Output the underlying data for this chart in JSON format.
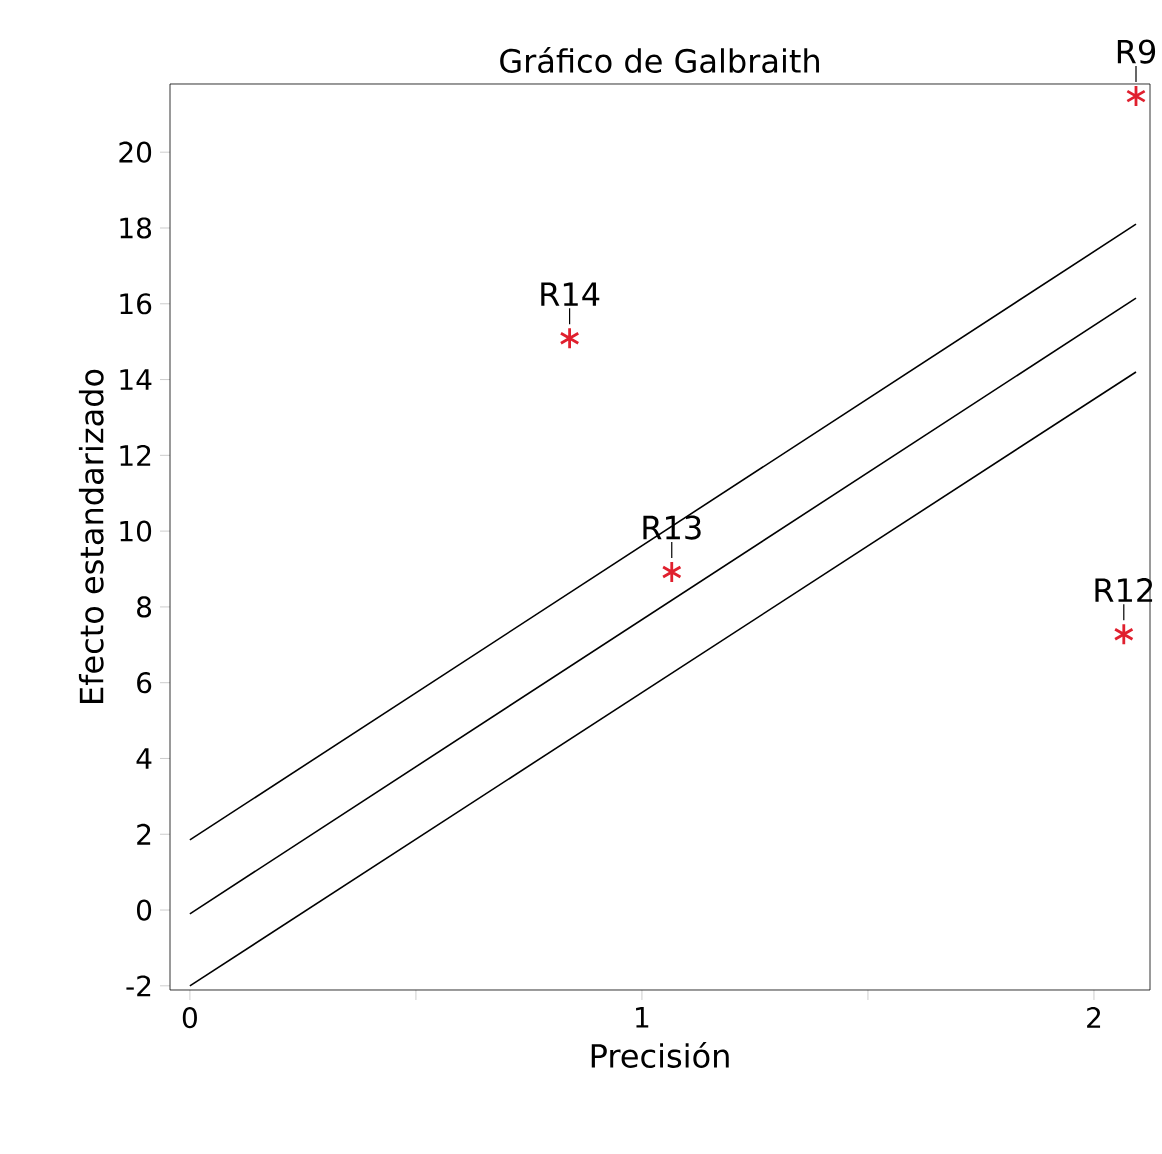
{
  "chart_data": {
    "type": "scatter",
    "title": "Gráfico de Galbraith",
    "xlabel": "Precisión",
    "ylabel": "Efecto estandarizado",
    "xlim": [
      -0.044,
      2.124
    ],
    "ylim": [
      -2.11,
      21.8
    ],
    "xticks": [
      0,
      {
        "value": 0.5,
        "label": null
      },
      1,
      {
        "value": 1.5,
        "label": null
      },
      2
    ],
    "yticks": [
      -2,
      0,
      2,
      4,
      6,
      8,
      10,
      12,
      14,
      16,
      18,
      20
    ],
    "series": [
      {
        "type": "scatter",
        "marker": "cross",
        "color": "#e0202e",
        "x": [
          0.84,
          1.066,
          2.066,
          2.093
        ],
        "values": [
          15.09,
          8.92,
          7.28,
          21.48
        ]
      },
      {
        "type": "line",
        "color": "#000000",
        "x": [
          0,
          2.093
        ],
        "values": [
          1.85,
          18.1
        ]
      },
      {
        "type": "line",
        "color": "#000000",
        "x": [
          0,
          2.093
        ],
        "values": [
          -0.1,
          16.15
        ]
      },
      {
        "type": "line",
        "color": "#000000",
        "x": [
          0,
          2.093
        ],
        "values": [
          -2.0,
          14.2
        ]
      }
    ],
    "annotations": [
      {
        "text": "R14",
        "x": 0.84,
        "y": 15.09
      },
      {
        "text": "R13",
        "x": 1.066,
        "y": 8.92
      },
      {
        "text": "R12",
        "x": 2.066,
        "y": 7.28
      },
      {
        "text": "R9",
        "x": 2.093,
        "y": 21.48
      }
    ]
  }
}
